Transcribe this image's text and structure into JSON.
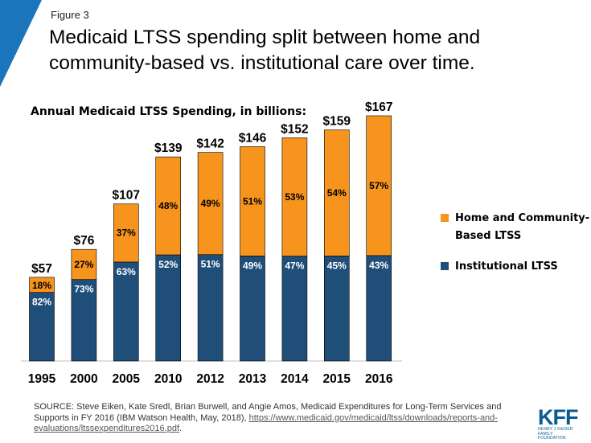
{
  "figure_label": "Figure 3",
  "title": "Medicaid LTSS spending split between home and community-based vs. institutional care over time.",
  "colors": {
    "institutional": "#1f4e79",
    "hcbs": "#f7941d",
    "brand": "#0a5b92"
  },
  "chart_data": {
    "type": "bar",
    "stacked": true,
    "title": "Annual Medicaid LTSS Spending, in billions:",
    "categories": [
      "1995",
      "2000",
      "2005",
      "2010",
      "2012",
      "2013",
      "2014",
      "2015",
      "2016"
    ],
    "totals": [
      57,
      76,
      107,
      139,
      142,
      146,
      152,
      159,
      167
    ],
    "total_labels": [
      "$57",
      "$76",
      "$107",
      "$139",
      "$142",
      "$146",
      "$152",
      "$159",
      "$167"
    ],
    "series": [
      {
        "name": "Institutional LTSS",
        "color": "#1f4e79",
        "percent_labels": [
          "82%",
          "73%",
          "63%",
          "52%",
          "51%",
          "49%",
          "47%",
          "45%",
          "43%"
        ],
        "share": [
          0.82,
          0.73,
          0.63,
          0.52,
          0.51,
          0.49,
          0.47,
          0.45,
          0.43
        ]
      },
      {
        "name": "Home and Community-Based LTSS",
        "color": "#f7941d",
        "percent_labels": [
          "18%",
          "27%",
          "37%",
          "48%",
          "49%",
          "51%",
          "53%",
          "54%",
          "57%"
        ],
        "share": [
          0.18,
          0.27,
          0.37,
          0.48,
          0.49,
          0.51,
          0.53,
          0.54,
          0.57
        ]
      }
    ],
    "ylim": [
      0,
      167
    ],
    "grid": false,
    "legend_position": "right",
    "legend": [
      {
        "label_line1": "Home and Community-",
        "label_line2": "Based LTSS",
        "color": "#f7941d"
      },
      {
        "label_line1": "Institutional LTSS",
        "label_line2": "",
        "color": "#1f4e79"
      }
    ]
  },
  "source": {
    "text": "SOURCE: Steve Eiken, Kate Sredl, Brian Burwell, and Angie Amos, Medicaid Expenditures for Long-Term Services and Supports in FY 2016 (IBM Watson Health, May, 2018), ",
    "link": "https://www.medicaid.gov/medicaid/ltss/downloads/reports-and-evaluations/ltssexpenditures2016.pdf",
    "suffix": "."
  },
  "logo": {
    "mark": "KFF",
    "sub": "HENRY J KAISER FAMILY FOUNDATION"
  }
}
